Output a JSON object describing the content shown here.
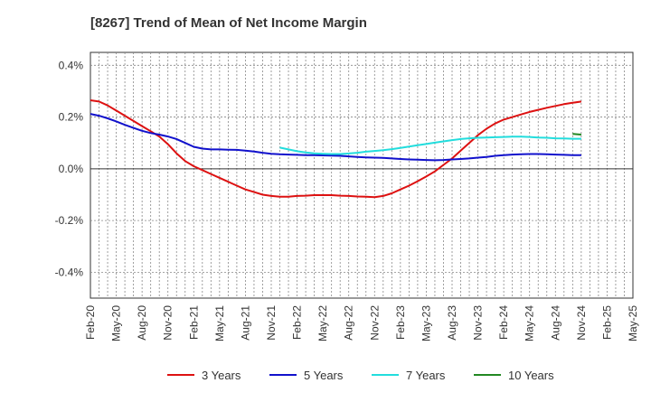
{
  "chart_data": {
    "type": "line",
    "title": "[8267]  Trend of Mean of Net Income Margin",
    "xlabel": "",
    "ylabel": "",
    "y_unit": "%",
    "ylim": [
      -0.5,
      0.45
    ],
    "yticks": [
      -0.4,
      -0.2,
      0.0,
      0.2,
      0.4
    ],
    "ytick_labels": [
      "-0.4%",
      "-0.2%",
      "0.0%",
      "0.2%",
      "0.4%"
    ],
    "x_labels": [
      "Feb-20",
      "May-20",
      "Aug-20",
      "Nov-20",
      "Feb-21",
      "May-21",
      "Aug-21",
      "Nov-21",
      "Feb-22",
      "May-22",
      "Aug-22",
      "Nov-22",
      "Feb-23",
      "May-23",
      "Aug-23",
      "Nov-23",
      "Feb-24",
      "May-24",
      "Aug-24",
      "Nov-24",
      "Feb-25",
      "May-25"
    ],
    "grid": "dotted",
    "legend_position": "bottom",
    "series": [
      {
        "name": "3 Years",
        "color": "#dd1111",
        "values": [
          0.265,
          0.26,
          0.245,
          0.225,
          0.205,
          0.185,
          0.165,
          0.145,
          0.125,
          0.095,
          0.06,
          0.03,
          0.01,
          -0.005,
          -0.02,
          -0.035,
          -0.05,
          -0.065,
          -0.08,
          -0.09,
          -0.1,
          -0.105,
          -0.108,
          -0.108,
          -0.105,
          -0.104,
          -0.102,
          -0.102,
          -0.102,
          -0.104,
          -0.105,
          -0.107,
          -0.108,
          -0.11,
          -0.105,
          -0.095,
          -0.08,
          -0.065,
          -0.048,
          -0.03,
          -0.01,
          0.015,
          0.04,
          0.07,
          0.1,
          0.13,
          0.155,
          0.175,
          0.19,
          0.2,
          0.21,
          0.22,
          0.228,
          0.236,
          0.243,
          0.25,
          0.255,
          0.26
        ]
      },
      {
        "name": "5 Years",
        "color": "#1111cc",
        "values": [
          0.212,
          0.205,
          0.195,
          0.183,
          0.17,
          0.158,
          0.147,
          0.138,
          0.132,
          0.125,
          0.115,
          0.1,
          0.085,
          0.078,
          0.075,
          0.075,
          0.074,
          0.073,
          0.07,
          0.067,
          0.062,
          0.058,
          0.056,
          0.055,
          0.054,
          0.053,
          0.053,
          0.052,
          0.051,
          0.05,
          0.048,
          0.046,
          0.044,
          0.043,
          0.042,
          0.04,
          0.038,
          0.036,
          0.035,
          0.034,
          0.033,
          0.034,
          0.036,
          0.038,
          0.04,
          0.043,
          0.046,
          0.05,
          0.053,
          0.055,
          0.056,
          0.057,
          0.057,
          0.056,
          0.055,
          0.054,
          0.053,
          0.053
        ]
      },
      {
        "name": "7 Years",
        "color": "#22dddd",
        "values": [
          null,
          null,
          null,
          null,
          null,
          null,
          null,
          null,
          null,
          null,
          null,
          null,
          null,
          null,
          null,
          null,
          null,
          null,
          null,
          null,
          null,
          null,
          0.082,
          0.075,
          0.068,
          0.063,
          0.06,
          0.058,
          0.057,
          0.057,
          0.059,
          0.062,
          0.066,
          0.069,
          0.072,
          0.076,
          0.081,
          0.086,
          0.091,
          0.096,
          0.101,
          0.106,
          0.111,
          0.115,
          0.118,
          0.12,
          0.121,
          0.122,
          0.123,
          0.124,
          0.124,
          0.123,
          0.121,
          0.12,
          0.118,
          0.117,
          0.116,
          0.116
        ]
      },
      {
        "name": "10 Years",
        "color": "#228822",
        "values": [
          null,
          null,
          null,
          null,
          null,
          null,
          null,
          null,
          null,
          null,
          null,
          null,
          null,
          null,
          null,
          null,
          null,
          null,
          null,
          null,
          null,
          null,
          null,
          null,
          null,
          null,
          null,
          null,
          null,
          null,
          null,
          null,
          null,
          null,
          null,
          null,
          null,
          null,
          null,
          null,
          null,
          null,
          null,
          null,
          null,
          null,
          null,
          null,
          null,
          null,
          null,
          null,
          null,
          null,
          null,
          null,
          0.135,
          0.132
        ]
      }
    ]
  }
}
